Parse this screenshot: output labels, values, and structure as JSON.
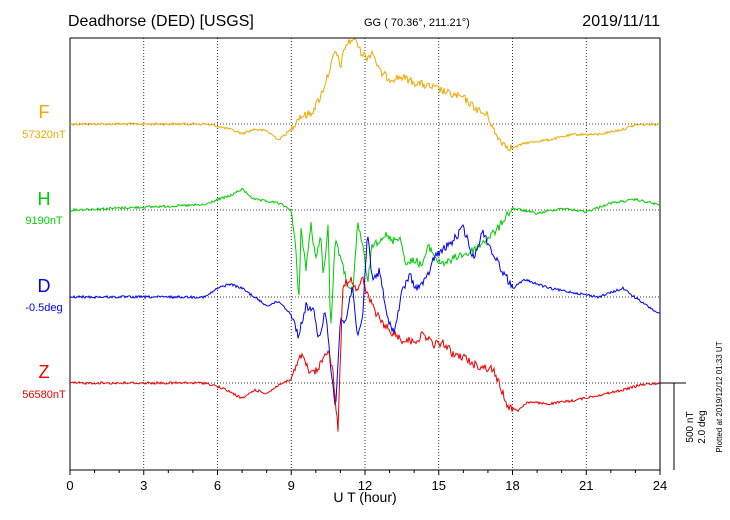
{
  "header": {
    "title": "Deadhorse (DED)  [USGS]",
    "coords": "GG ( 70.36°, 211.21°)",
    "date": "2019/11/11"
  },
  "chart_data": {
    "type": "line",
    "xlabel": "U T (hour)",
    "xlim": [
      0,
      24
    ],
    "xticks": [
      "0",
      "3",
      "6",
      "9",
      "12",
      "15",
      "18",
      "21",
      "24"
    ],
    "grid": true,
    "scale_bar": {
      "label_1": "500 nT",
      "label_2": "2.0 deg"
    },
    "footer": "Plotted at 2019/12/12 01:33 UT",
    "series": [
      {
        "name": "F",
        "baseline_label": "57320nT",
        "color": "#f0a800",
        "unit_per_bar": 500,
        "points": [
          [
            0,
            0
          ],
          [
            5.5,
            0
          ],
          [
            6,
            -12
          ],
          [
            6.5,
            -30
          ],
          [
            7,
            -55
          ],
          [
            7.5,
            -30
          ],
          [
            8,
            -40
          ],
          [
            8.5,
            -90
          ],
          [
            9,
            -30
          ],
          [
            9.3,
            40
          ],
          [
            9.8,
            60
          ],
          [
            10.2,
            160
          ],
          [
            10.6,
            330
          ],
          [
            10.8,
            420
          ],
          [
            11,
            330
          ],
          [
            11.2,
            450
          ],
          [
            11.6,
            500
          ],
          [
            11.8,
            420
          ],
          [
            12.1,
            380
          ],
          [
            12.3,
            420
          ],
          [
            12.6,
            300
          ],
          [
            13,
            260
          ],
          [
            13.5,
            270
          ],
          [
            14,
            240
          ],
          [
            14.5,
            220
          ],
          [
            15,
            200
          ],
          [
            15.5,
            170
          ],
          [
            16,
            150
          ],
          [
            16.5,
            90
          ],
          [
            16.8,
            60
          ],
          [
            17,
            50
          ],
          [
            17.3,
            -60
          ],
          [
            17.7,
            -120
          ],
          [
            18,
            -140
          ],
          [
            18.5,
            -110
          ],
          [
            19.5,
            -90
          ],
          [
            20.5,
            -60
          ],
          [
            21.5,
            -60
          ],
          [
            22.5,
            -30
          ],
          [
            23,
            -5
          ],
          [
            24,
            0
          ]
        ]
      },
      {
        "name": "H",
        "baseline_label": "9190nT",
        "color": "#00cc00",
        "unit_per_bar": 500,
        "points": [
          [
            0,
            0
          ],
          [
            5.5,
            30
          ],
          [
            6,
            60
          ],
          [
            6.5,
            80
          ],
          [
            7,
            120
          ],
          [
            7.5,
            60
          ],
          [
            8,
            50
          ],
          [
            8.5,
            40
          ],
          [
            9,
            0
          ],
          [
            9.2,
            -250
          ],
          [
            9.3,
            -550
          ],
          [
            9.4,
            -100
          ],
          [
            9.6,
            -340
          ],
          [
            9.8,
            -80
          ],
          [
            10,
            -300
          ],
          [
            10.2,
            -120
          ],
          [
            10.3,
            -400
          ],
          [
            10.5,
            -70
          ],
          [
            10.6,
            -700
          ],
          [
            10.8,
            -150
          ],
          [
            11,
            -280
          ],
          [
            11.2,
            -380
          ],
          [
            11.5,
            -500
          ],
          [
            11.7,
            -70
          ],
          [
            11.9,
            -200
          ],
          [
            12.1,
            -420
          ],
          [
            12.3,
            -200
          ],
          [
            12.5,
            -180
          ],
          [
            12.8,
            -140
          ],
          [
            13.1,
            -180
          ],
          [
            13.4,
            -150
          ],
          [
            13.7,
            -320
          ],
          [
            14,
            -280
          ],
          [
            14.3,
            -320
          ],
          [
            14.6,
            -210
          ],
          [
            15,
            -300
          ],
          [
            15.4,
            -300
          ],
          [
            15.8,
            -260
          ],
          [
            16.2,
            -250
          ],
          [
            16.6,
            -210
          ],
          [
            17,
            -160
          ],
          [
            17.4,
            -110
          ],
          [
            17.7,
            -40
          ],
          [
            18,
            10
          ],
          [
            19,
            -20
          ],
          [
            20,
            10
          ],
          [
            21,
            -10
          ],
          [
            22,
            40
          ],
          [
            23,
            60
          ],
          [
            24,
            30
          ]
        ]
      },
      {
        "name": "D",
        "baseline_label": "-0.5deg",
        "color": "#0000ee",
        "unit_per_bar": 2.0,
        "points": [
          [
            0,
            0
          ],
          [
            5.5,
            0
          ],
          [
            6,
            0.2
          ],
          [
            6.5,
            0.3
          ],
          [
            7,
            0.2
          ],
          [
            7.5,
            0.0
          ],
          [
            8,
            -0.2
          ],
          [
            8.5,
            -0.1
          ],
          [
            9,
            -0.4
          ],
          [
            9.3,
            -0.9
          ],
          [
            9.6,
            -0.2
          ],
          [
            9.9,
            -0.3
          ],
          [
            10.1,
            -1.0
          ],
          [
            10.4,
            -0.3
          ],
          [
            10.6,
            -1.6
          ],
          [
            10.8,
            -2.5
          ],
          [
            11,
            -0.5
          ],
          [
            11.2,
            -0.6
          ],
          [
            11.5,
            0.3
          ],
          [
            11.7,
            -1.0
          ],
          [
            11.9,
            -0.5
          ],
          [
            12.1,
            1.5
          ],
          [
            12.3,
            0.4
          ],
          [
            12.6,
            0.6
          ],
          [
            12.9,
            -0.5
          ],
          [
            13.2,
            -0.8
          ],
          [
            13.5,
            0.1
          ],
          [
            13.8,
            0.5
          ],
          [
            14.1,
            0.2
          ],
          [
            14.5,
            0.4
          ],
          [
            14.8,
            0.9
          ],
          [
            15.2,
            1.1
          ],
          [
            15.6,
            1.3
          ],
          [
            16,
            1.6
          ],
          [
            16.4,
            0.9
          ],
          [
            16.8,
            1.5
          ],
          [
            17.2,
            1.0
          ],
          [
            17.6,
            0.6
          ],
          [
            18,
            0.2
          ],
          [
            18.5,
            0.4
          ],
          [
            19.5,
            0.2
          ],
          [
            20.5,
            0.1
          ],
          [
            21.5,
            0.0
          ],
          [
            22.5,
            0.2
          ],
          [
            23.2,
            -0.1
          ],
          [
            24,
            -0.4
          ]
        ]
      },
      {
        "name": "Z",
        "baseline_label": "56580nT",
        "color": "#ee0000",
        "unit_per_bar": 500,
        "points": [
          [
            0,
            0
          ],
          [
            5.5,
            0
          ],
          [
            6,
            -20
          ],
          [
            6.5,
            -50
          ],
          [
            7,
            -90
          ],
          [
            7.5,
            -40
          ],
          [
            8,
            -60
          ],
          [
            8.5,
            -10
          ],
          [
            9,
            20
          ],
          [
            9.4,
            160
          ],
          [
            9.8,
            50
          ],
          [
            10.1,
            80
          ],
          [
            10.5,
            200
          ],
          [
            10.7,
            50
          ],
          [
            10.9,
            -270
          ],
          [
            11.1,
            560
          ],
          [
            11.4,
            600
          ],
          [
            11.7,
            540
          ],
          [
            11.9,
            600
          ],
          [
            12.1,
            500
          ],
          [
            12.3,
            450
          ],
          [
            12.6,
            360
          ],
          [
            13,
            300
          ],
          [
            13.5,
            250
          ],
          [
            14,
            240
          ],
          [
            14.4,
            280
          ],
          [
            14.8,
            220
          ],
          [
            15.2,
            230
          ],
          [
            15.6,
            160
          ],
          [
            16,
            150
          ],
          [
            16.4,
            110
          ],
          [
            16.8,
            90
          ],
          [
            17.2,
            80
          ],
          [
            17.5,
            -20
          ],
          [
            17.8,
            -130
          ],
          [
            18.2,
            -160
          ],
          [
            18.6,
            -110
          ],
          [
            19.5,
            -120
          ],
          [
            20.5,
            -100
          ],
          [
            21.5,
            -70
          ],
          [
            22.5,
            -40
          ],
          [
            23.2,
            -10
          ],
          [
            24,
            0
          ]
        ]
      }
    ]
  }
}
